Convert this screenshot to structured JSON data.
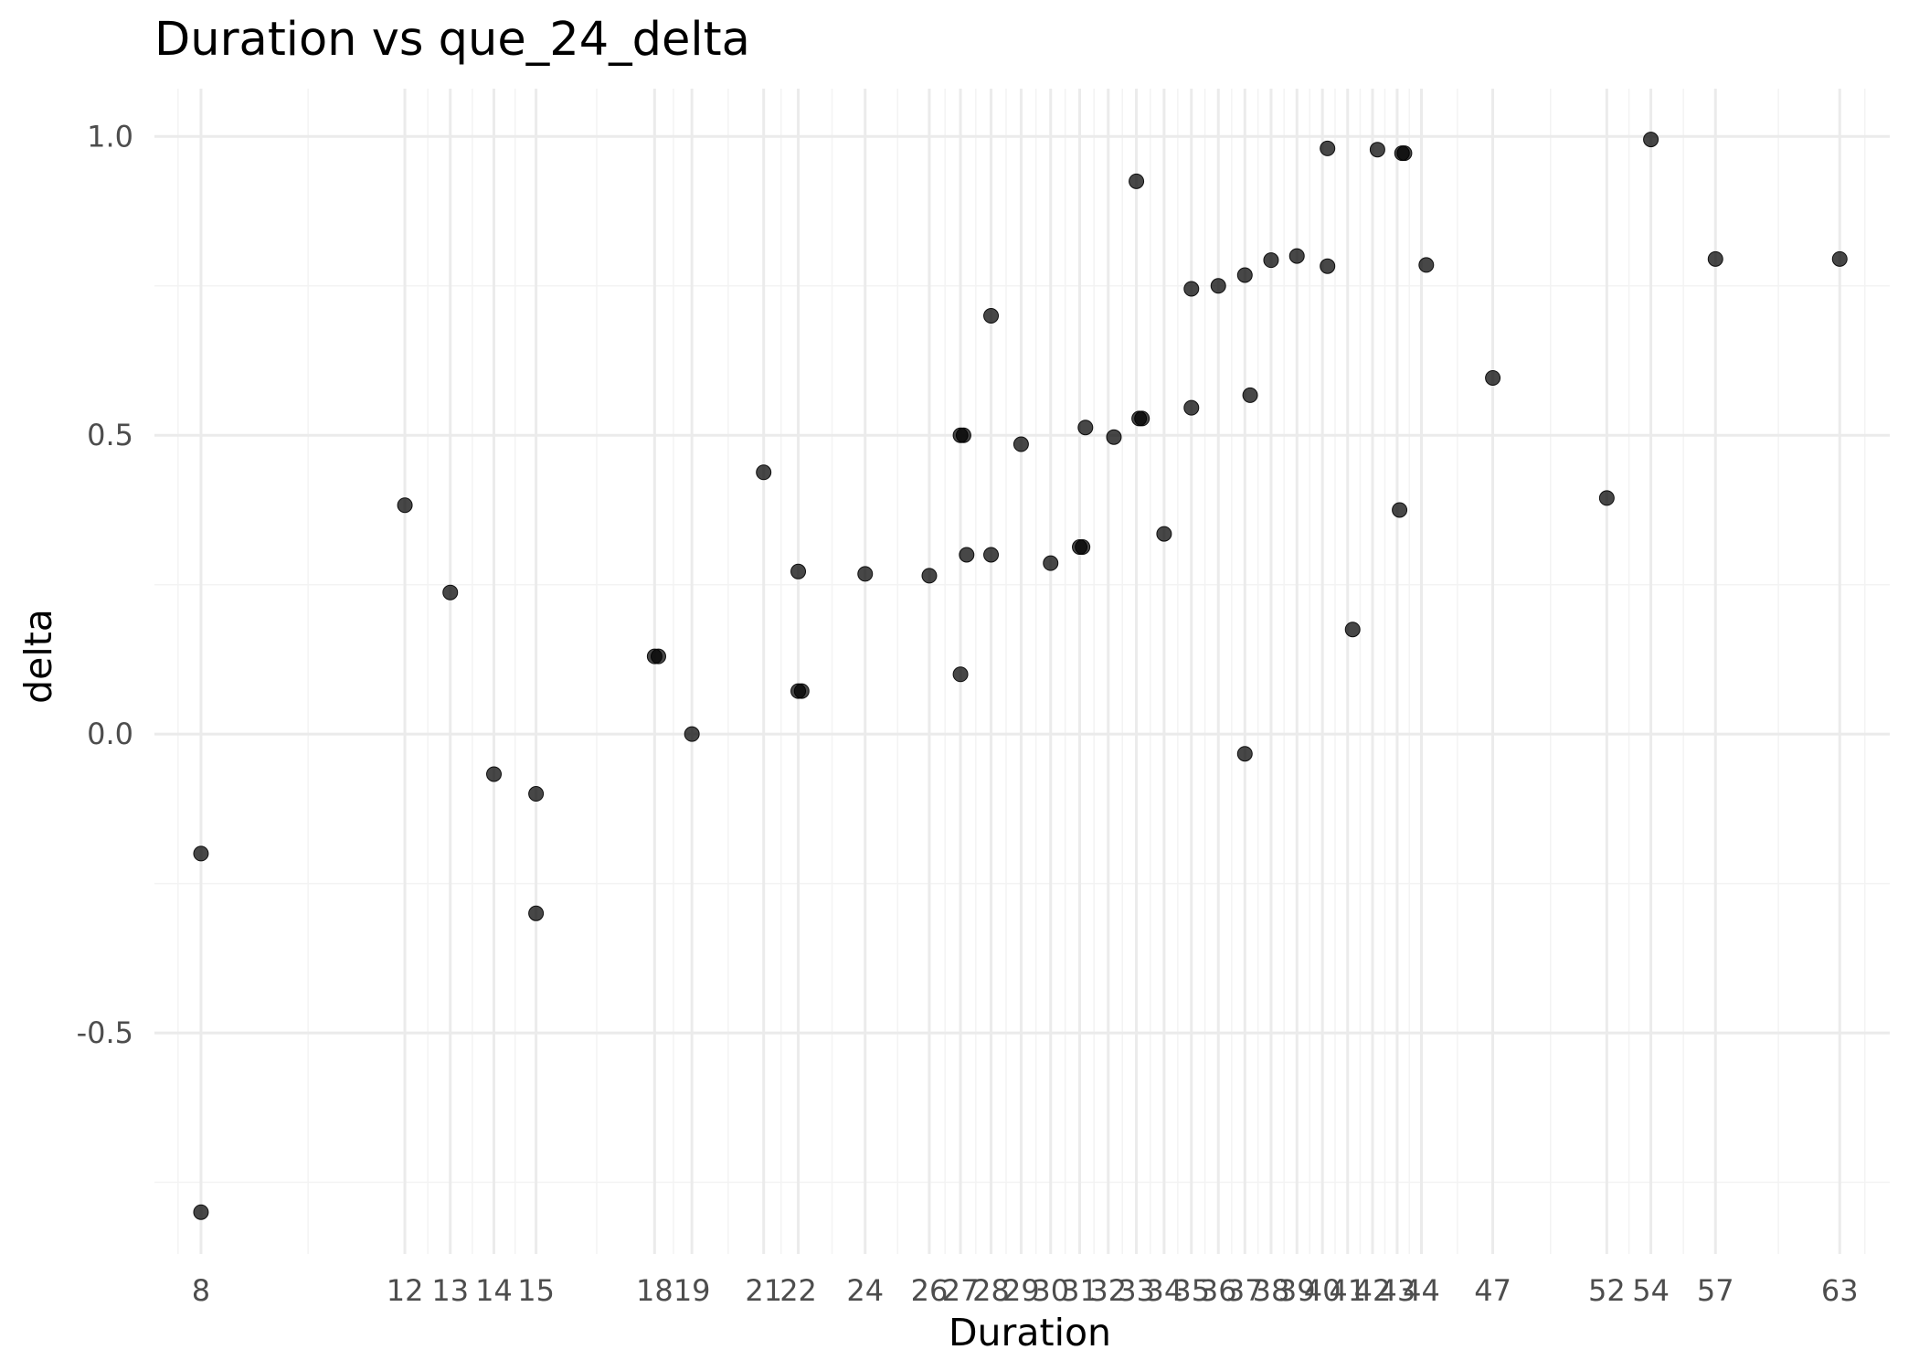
{
  "chart_data": {
    "type": "scatter",
    "title": "Duration vs que_24_delta",
    "xlabel": "Duration",
    "ylabel": "delta",
    "x_scale": "sqrt",
    "xlim": [
      7.2,
      65.5
    ],
    "ylim": [
      -0.87,
      1.08
    ],
    "x_ticks": [
      8,
      12,
      13,
      14,
      15,
      18,
      19,
      21,
      22,
      24,
      26,
      27,
      28,
      29,
      30,
      31,
      32,
      33,
      34,
      35,
      36,
      37,
      38,
      39,
      40,
      41,
      42,
      43,
      44,
      47,
      52,
      54,
      57,
      63
    ],
    "y_ticks": [
      -0.5,
      0.0,
      0.5,
      1.0
    ],
    "y_tick_labels": [
      "-0.5",
      "0.0",
      "0.5",
      "1.0"
    ],
    "y_minor_ticks": [
      -0.75,
      -0.25,
      0.25,
      0.75
    ],
    "grid": true,
    "legend": "none",
    "point_color": "#000000",
    "points": [
      {
        "x": 8,
        "y": -0.2
      },
      {
        "x": 8,
        "y": -0.8
      },
      {
        "x": 12,
        "y": 0.383
      },
      {
        "x": 13,
        "y": 0.237
      },
      {
        "x": 14,
        "y": -0.067
      },
      {
        "x": 15,
        "y": -0.1
      },
      {
        "x": 15,
        "y": -0.3
      },
      {
        "x": 18,
        "y": 0.13
      },
      {
        "x": 18.1,
        "y": 0.13
      },
      {
        "x": 19,
        "y": 0.0
      },
      {
        "x": 21,
        "y": 0.438
      },
      {
        "x": 22,
        "y": 0.272
      },
      {
        "x": 22,
        "y": 0.072
      },
      {
        "x": 22.1,
        "y": 0.072
      },
      {
        "x": 24,
        "y": 0.268
      },
      {
        "x": 26,
        "y": 0.265
      },
      {
        "x": 27,
        "y": 0.5
      },
      {
        "x": 27.1,
        "y": 0.5
      },
      {
        "x": 27,
        "y": 0.1
      },
      {
        "x": 27.2,
        "y": 0.3
      },
      {
        "x": 28,
        "y": 0.3
      },
      {
        "x": 28,
        "y": 0.7
      },
      {
        "x": 29,
        "y": 0.485
      },
      {
        "x": 30,
        "y": 0.286
      },
      {
        "x": 31,
        "y": 0.313
      },
      {
        "x": 31.1,
        "y": 0.313
      },
      {
        "x": 31.2,
        "y": 0.513
      },
      {
        "x": 32.2,
        "y": 0.497
      },
      {
        "x": 33,
        "y": 0.925
      },
      {
        "x": 33.1,
        "y": 0.528
      },
      {
        "x": 33.2,
        "y": 0.528
      },
      {
        "x": 34,
        "y": 0.335
      },
      {
        "x": 35,
        "y": 0.745
      },
      {
        "x": 35,
        "y": 0.546
      },
      {
        "x": 36,
        "y": 0.75
      },
      {
        "x": 37,
        "y": 0.768
      },
      {
        "x": 37.2,
        "y": 0.567
      },
      {
        "x": 37,
        "y": -0.033
      },
      {
        "x": 38,
        "y": 0.793
      },
      {
        "x": 39,
        "y": 0.8
      },
      {
        "x": 40.2,
        "y": 0.98
      },
      {
        "x": 40.2,
        "y": 0.783
      },
      {
        "x": 41.2,
        "y": 0.175
      },
      {
        "x": 42.2,
        "y": 0.978
      },
      {
        "x": 43.1,
        "y": 0.375
      },
      {
        "x": 43.2,
        "y": 0.972
      },
      {
        "x": 43.3,
        "y": 0.972
      },
      {
        "x": 44.2,
        "y": 0.785
      },
      {
        "x": 47,
        "y": 0.596
      },
      {
        "x": 52,
        "y": 0.395
      },
      {
        "x": 54,
        "y": 0.995
      },
      {
        "x": 57,
        "y": 0.795
      },
      {
        "x": 63,
        "y": 0.795
      }
    ]
  }
}
